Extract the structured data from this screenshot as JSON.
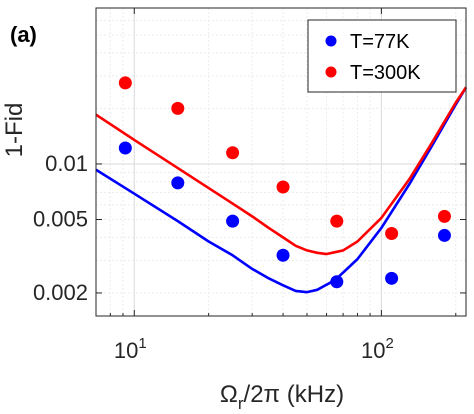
{
  "chart_data": {
    "type": "scatter",
    "panel_label": "(a)",
    "xlabel_main": "Ω",
    "xlabel_sub": "r",
    "xlabel_rest": "/2π (kHz)",
    "ylabel": "1-Fid",
    "x_scale": "log",
    "y_scale": "log",
    "xlim": [
      7,
      220
    ],
    "ylim": [
      0.0015,
      0.07
    ],
    "x_ticks": [
      10,
      100
    ],
    "x_tick_labels": [
      {
        "base": "10",
        "exp": "1"
      },
      {
        "base": "10",
        "exp": "2"
      }
    ],
    "y_ticks": [
      0.002,
      0.005,
      0.01
    ],
    "y_tick_labels": [
      "0.002",
      "0.005",
      "0.01"
    ],
    "grid": true,
    "legend_position": "top-right",
    "series": [
      {
        "name": "T=77K",
        "color": "#0000ff",
        "points": [
          [
            9.2,
            0.0122
          ],
          [
            15,
            0.0079
          ],
          [
            25,
            0.0049
          ],
          [
            40,
            0.0032
          ],
          [
            66,
            0.0023
          ],
          [
            110,
            0.0024
          ],
          [
            180,
            0.0041
          ]
        ],
        "fit": [
          [
            7,
            0.0093
          ],
          [
            10,
            0.0069
          ],
          [
            15,
            0.0049
          ],
          [
            20,
            0.0038
          ],
          [
            25,
            0.0032
          ],
          [
            30,
            0.0027
          ],
          [
            35,
            0.0024
          ],
          [
            40,
            0.0022
          ],
          [
            45,
            0.00205
          ],
          [
            50,
            0.00202
          ],
          [
            55,
            0.00208
          ],
          [
            65,
            0.00235
          ],
          [
            80,
            0.00305
          ],
          [
            100,
            0.0045
          ],
          [
            130,
            0.0078
          ],
          [
            160,
            0.0125
          ],
          [
            200,
            0.021
          ],
          [
            220,
            0.026
          ]
        ]
      },
      {
        "name": "T=300K",
        "color": "#ff0000",
        "points": [
          [
            9.2,
            0.0275
          ],
          [
            15,
            0.02
          ],
          [
            25,
            0.0115
          ],
          [
            40,
            0.0075
          ],
          [
            66,
            0.0049
          ],
          [
            110,
            0.0042
          ],
          [
            180,
            0.0052
          ]
        ],
        "fit": [
          [
            7,
            0.0185
          ],
          [
            10,
            0.0135
          ],
          [
            15,
            0.0095
          ],
          [
            20,
            0.0074
          ],
          [
            25,
            0.0061
          ],
          [
            30,
            0.0052
          ],
          [
            35,
            0.0045
          ],
          [
            40,
            0.004
          ],
          [
            45,
            0.0036
          ],
          [
            50,
            0.0034
          ],
          [
            55,
            0.0033
          ],
          [
            60,
            0.00325
          ],
          [
            70,
            0.0034
          ],
          [
            80,
            0.0038
          ],
          [
            100,
            0.0051
          ],
          [
            130,
            0.0083
          ],
          [
            160,
            0.013
          ],
          [
            200,
            0.0215
          ],
          [
            220,
            0.026
          ]
        ]
      }
    ]
  }
}
